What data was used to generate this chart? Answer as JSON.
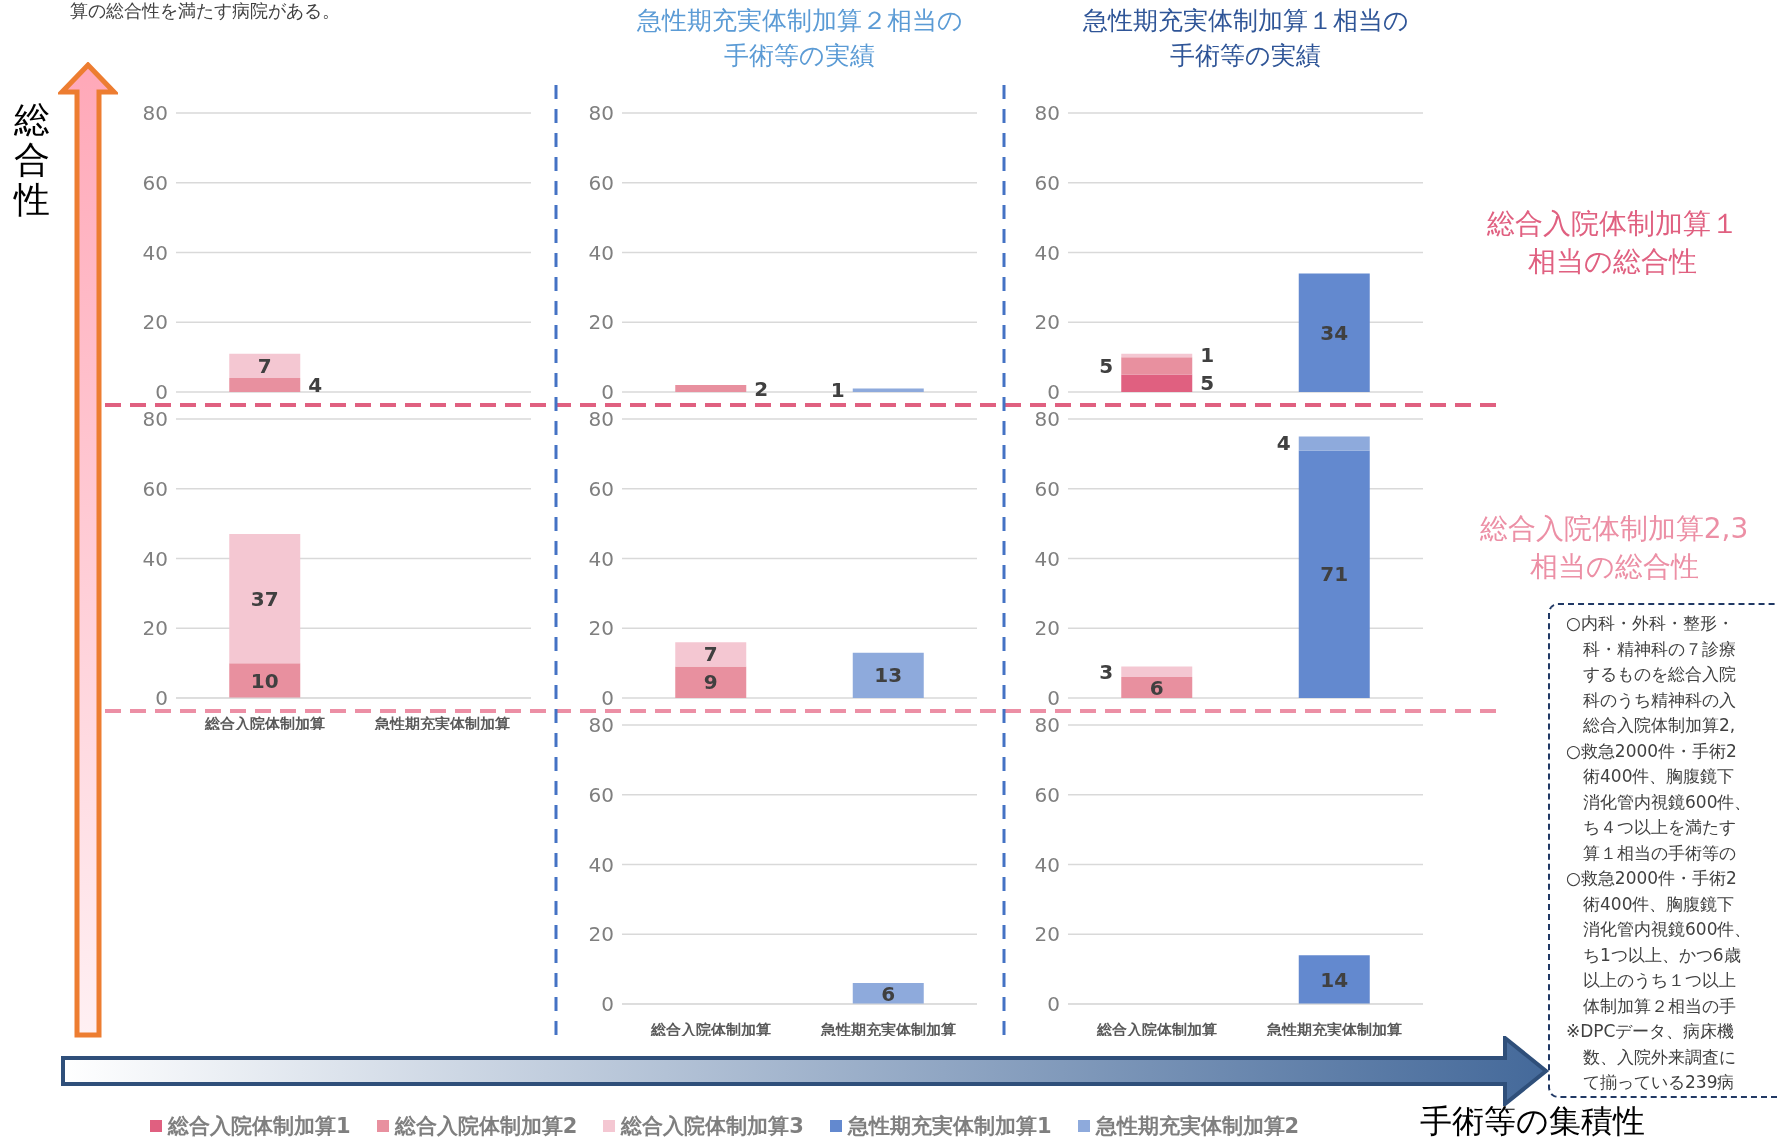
{
  "chart_data": [
    {
      "type": "bar",
      "stacked": true,
      "ylim": [
        0,
        80
      ],
      "yticks": [
        0,
        20,
        40,
        60,
        80
      ],
      "grid": "y",
      "tick_labels": "y",
      "data_labels": true,
      "series": [
        {
          "color": "#e8909f",
          "values": [
            4,
            null
          ]
        },
        {
          "color": "#f4c7d2",
          "values": [
            7,
            null
          ]
        }
      ]
    },
    {
      "type": "bar",
      "stacked": true,
      "title": "急性期充実体制加算２相当の手術等の実績",
      "ylim": [
        0,
        80
      ],
      "yticks": [
        0,
        20,
        40,
        60,
        80
      ],
      "grid": "y",
      "tick_labels": "y",
      "data_labels": true,
      "series": [
        {
          "color": "#e8909f",
          "values": [
            2,
            null
          ]
        },
        {
          "color": "#8eaadc",
          "values": [
            null,
            1
          ]
        }
      ]
    },
    {
      "type": "bar",
      "stacked": true,
      "title": "急性期充実体制加算１相当の手術等の実績",
      "ylim": [
        0,
        80
      ],
      "yticks": [
        0,
        20,
        40,
        60,
        80
      ],
      "grid": "y",
      "tick_labels": "y",
      "data_labels": true,
      "series": [
        {
          "color": "#e06080",
          "values": [
            5,
            null
          ]
        },
        {
          "color": "#e8909f",
          "values": [
            5,
            null
          ]
        },
        {
          "color": "#f4c7d2",
          "values": [
            1,
            null
          ]
        },
        {
          "color": "#6389cf",
          "values": [
            null,
            34
          ]
        }
      ]
    },
    {
      "type": "bar",
      "stacked": true,
      "categories": [
        "総合入院体制加算",
        "急性期充実体制加算"
      ],
      "ylim": [
        0,
        80
      ],
      "yticks": [
        0,
        20,
        40,
        60,
        80
      ],
      "grid": "y",
      "data_labels": true,
      "series": [
        {
          "color": "#e8909f",
          "values": [
            10,
            null
          ]
        },
        {
          "color": "#f4c7d2",
          "values": [
            37,
            null
          ]
        }
      ]
    },
    {
      "type": "bar",
      "stacked": true,
      "ylim": [
        0,
        80
      ],
      "yticks": [
        0,
        20,
        40,
        60,
        80
      ],
      "grid": "y",
      "tick_labels": "y",
      "data_labels": true,
      "series": [
        {
          "color": "#e8909f",
          "values": [
            9,
            null
          ]
        },
        {
          "color": "#f4c7d2",
          "values": [
            7,
            null
          ]
        },
        {
          "color": "#8eaadc",
          "values": [
            null,
            13
          ]
        }
      ]
    },
    {
      "type": "bar",
      "stacked": true,
      "ylim": [
        0,
        80
      ],
      "yticks": [
        0,
        20,
        40,
        60,
        80
      ],
      "grid": "y",
      "tick_labels": "y",
      "data_labels": true,
      "series": [
        {
          "color": "#e8909f",
          "values": [
            6,
            null
          ]
        },
        {
          "color": "#f4c7d2",
          "values": [
            3,
            null
          ]
        },
        {
          "color": "#6389cf",
          "values": [
            null,
            71
          ]
        },
        {
          "color": "#8eaadc",
          "values": [
            null,
            4
          ]
        }
      ]
    },
    {
      "type": "bar",
      "stacked": true,
      "categories": [
        "総合入院体制加算",
        "急性期充実体制加算"
      ],
      "ylim": [
        0,
        80
      ],
      "yticks": [
        0,
        20,
        40,
        60,
        80
      ],
      "grid": "y",
      "data_labels": true,
      "series": [
        {
          "color": "#8eaadc",
          "values": [
            null,
            6
          ]
        }
      ]
    },
    {
      "type": "bar",
      "stacked": true,
      "categories": [
        "総合入院体制加算",
        "急性期充実体制加算"
      ],
      "ylim": [
        0,
        80
      ],
      "yticks": [
        0,
        20,
        40,
        60,
        80
      ],
      "grid": "y",
      "data_labels": true,
      "legend": "bottom",
      "series": [
        {
          "name": "総合入院体制加算1",
          "color": "#e06080",
          "values": [
            null,
            null
          ]
        },
        {
          "name": "総合入院体制加算2",
          "color": "#e8909f",
          "values": [
            null,
            null
          ]
        },
        {
          "name": "総合入院体制加算3",
          "color": "#f4c7d2",
          "values": [
            null,
            null
          ]
        },
        {
          "name": "急性期充実体制加算1",
          "color": "#6389cf",
          "values": [
            null,
            14
          ]
        },
        {
          "name": "急性期充実体制加算2",
          "color": "#8eaadc",
          "values": [
            null,
            null
          ]
        }
      ]
    },
    {
      "type": "other",
      "annotations": [
        "算の総合性を満たす病院がある。",
        "総合性",
        "手術等の集積性",
        "総合入院体制加算１相当の総合性",
        "総合入院体制加算2,3相当の総合性",
        "○内科・外科・整形・",
        "科・精神科の７診療",
        "するものを総合入院",
        "科のうち精神科の入",
        "総合入院体制加算2,",
        "○救急2000件・手術2",
        "術400件、胸腹鏡下",
        "消化管内視鏡600件、",
        "ち４つ以上を満たす",
        "算１相当の手術等の",
        "○救急2000件・手術2",
        "術400件、胸腹鏡下",
        "消化管内視鏡600件、",
        "ち1つ以上、かつ6歳",
        "以上のうち１つ以上",
        "体制加算２相当の手",
        "※DPCデータ、病床機",
        "数、入院外来調査に",
        "て揃っている239病"
      ]
    }
  ]
}
